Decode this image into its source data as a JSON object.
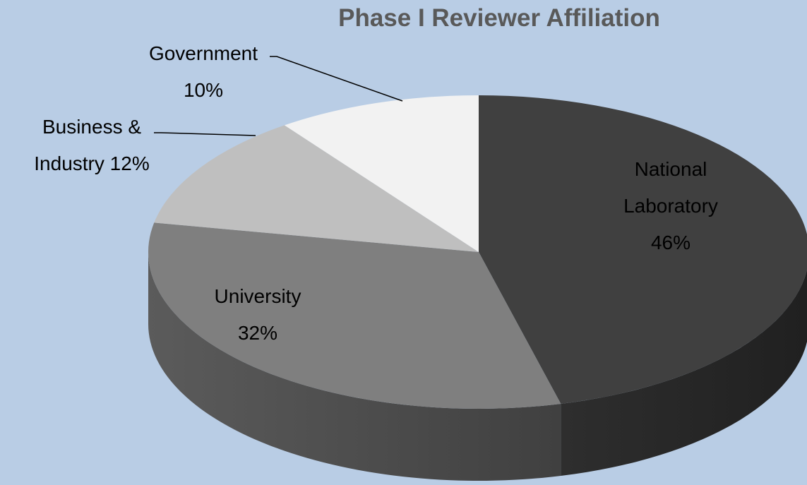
{
  "chart_data": {
    "type": "pie3d",
    "title": "Phase I Reviewer Affiliation",
    "categories": [
      "National Laboratory",
      "University",
      "Business & Industry",
      "Government"
    ],
    "values": [
      46,
      32,
      12,
      10
    ],
    "value_labels": [
      "46%",
      "32%",
      "12%",
      "10%"
    ],
    "colors": [
      "#404040",
      "#7f7f7f",
      "#bfbfbf",
      "#f2f2f2"
    ]
  }
}
